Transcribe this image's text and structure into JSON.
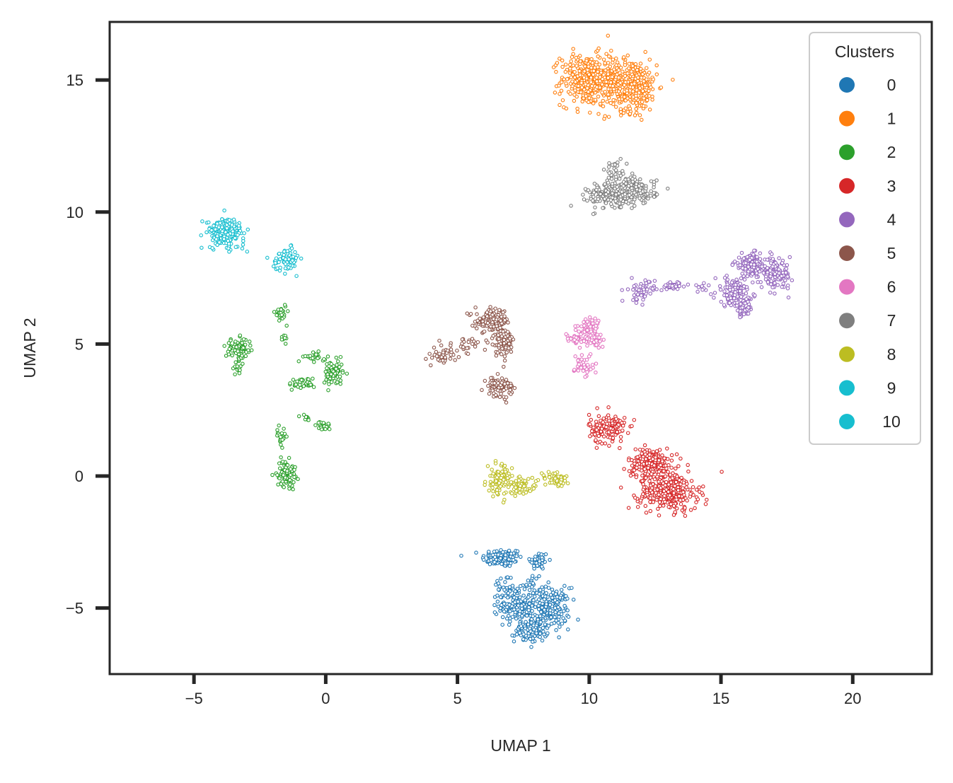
{
  "chart_data": {
    "type": "scatter",
    "title": "",
    "xlabel": "UMAP 1",
    "ylabel": "UMAP 2",
    "xlim": [
      -8.2,
      23
    ],
    "ylim": [
      -7.5,
      17.2
    ],
    "xticks": [
      -5,
      0,
      5,
      10,
      15,
      20
    ],
    "yticks": [
      -5,
      0,
      5,
      10,
      15
    ],
    "xtick_labels": [
      "−5",
      "0",
      "5",
      "10",
      "15",
      "20"
    ],
    "ytick_labels": [
      "−5",
      "0",
      "5",
      "10",
      "15"
    ],
    "grid": false,
    "legend": {
      "title": "Clusters",
      "position": "top-right"
    },
    "series": [
      {
        "name": "0",
        "color": "#1f77b4",
        "blobs": [
          [
            6.7,
            -3.1,
            0.55,
            0.25,
            110
          ],
          [
            8.1,
            -3.2,
            0.25,
            0.25,
            45
          ],
          [
            6.8,
            -4.2,
            0.3,
            0.35,
            30
          ],
          [
            7.2,
            -4.9,
            0.45,
            0.45,
            140
          ],
          [
            8.5,
            -5.0,
            0.55,
            0.55,
            180
          ],
          [
            7.8,
            -5.8,
            0.45,
            0.35,
            110
          ],
          [
            7.9,
            -4.1,
            0.2,
            0.3,
            20
          ]
        ]
      },
      {
        "name": "1",
        "color": "#ff7f0e",
        "blobs": [
          [
            9.9,
            15.0,
            0.7,
            0.7,
            320
          ],
          [
            11.6,
            14.8,
            0.7,
            0.7,
            360
          ],
          [
            10.8,
            15.1,
            0.2,
            0.6,
            40
          ]
        ]
      },
      {
        "name": "2",
        "color": "#2ca02c",
        "blobs": [
          [
            -3.3,
            4.8,
            0.35,
            0.3,
            80
          ],
          [
            -3.3,
            4.1,
            0.15,
            0.2,
            15
          ],
          [
            -1.7,
            6.2,
            0.15,
            0.25,
            30
          ],
          [
            -1.6,
            5.2,
            0.12,
            0.12,
            10
          ],
          [
            -0.4,
            4.5,
            0.3,
            0.12,
            25
          ],
          [
            0.3,
            3.9,
            0.25,
            0.35,
            80
          ],
          [
            -0.9,
            3.5,
            0.35,
            0.15,
            40
          ],
          [
            -1.7,
            1.5,
            0.12,
            0.25,
            25
          ],
          [
            -1.5,
            0.1,
            0.25,
            0.35,
            90
          ],
          [
            -0.1,
            1.9,
            0.2,
            0.12,
            25
          ],
          [
            -0.8,
            2.2,
            0.15,
            0.1,
            10
          ]
        ]
      },
      {
        "name": "3",
        "color": "#d62728",
        "blobs": [
          [
            10.7,
            1.8,
            0.5,
            0.4,
            150
          ],
          [
            12.3,
            0.5,
            0.6,
            0.4,
            200
          ],
          [
            13.0,
            -0.6,
            0.8,
            0.5,
            320
          ]
        ]
      },
      {
        "name": "4",
        "color": "#9467bd",
        "blobs": [
          [
            12.0,
            7.0,
            0.35,
            0.3,
            60
          ],
          [
            13.2,
            7.2,
            0.35,
            0.1,
            35
          ],
          [
            15.5,
            7.0,
            0.5,
            0.4,
            120
          ],
          [
            16.2,
            8.0,
            0.5,
            0.3,
            150
          ],
          [
            17.1,
            7.6,
            0.4,
            0.35,
            110
          ],
          [
            15.8,
            6.4,
            0.3,
            0.3,
            50
          ],
          [
            14.3,
            7.1,
            0.2,
            0.1,
            10
          ]
        ]
      },
      {
        "name": "5",
        "color": "#8c564b",
        "blobs": [
          [
            6.3,
            5.9,
            0.45,
            0.3,
            120
          ],
          [
            6.7,
            5.1,
            0.35,
            0.4,
            90
          ],
          [
            4.5,
            4.6,
            0.3,
            0.25,
            45
          ],
          [
            6.6,
            3.4,
            0.35,
            0.25,
            90
          ],
          [
            5.4,
            4.9,
            0.3,
            0.3,
            20
          ]
        ]
      },
      {
        "name": "6",
        "color": "#e377c2",
        "blobs": [
          [
            10.0,
            5.6,
            0.3,
            0.3,
            80
          ],
          [
            9.5,
            5.2,
            0.3,
            0.15,
            35
          ],
          [
            9.8,
            4.2,
            0.25,
            0.35,
            45
          ],
          [
            10.3,
            5.1,
            0.25,
            0.15,
            20
          ]
        ]
      },
      {
        "name": "7",
        "color": "#7f7f7f",
        "blobs": [
          [
            10.7,
            10.6,
            0.55,
            0.35,
            130
          ],
          [
            11.7,
            10.8,
            0.6,
            0.35,
            160
          ],
          [
            11.0,
            11.5,
            0.3,
            0.35,
            30
          ]
        ]
      },
      {
        "name": "8",
        "color": "#bcbd22",
        "blobs": [
          [
            6.6,
            -0.2,
            0.35,
            0.4,
            110
          ],
          [
            7.5,
            -0.4,
            0.35,
            0.2,
            50
          ],
          [
            8.7,
            -0.1,
            0.4,
            0.2,
            55
          ]
        ]
      },
      {
        "name": "9",
        "color": "#17becf",
        "blobs": [
          [
            -3.8,
            9.2,
            0.5,
            0.4,
            200
          ],
          [
            -1.5,
            8.2,
            0.35,
            0.3,
            70
          ]
        ]
      },
      {
        "name": "10",
        "color": "#17becf",
        "blobs": []
      }
    ]
  }
}
